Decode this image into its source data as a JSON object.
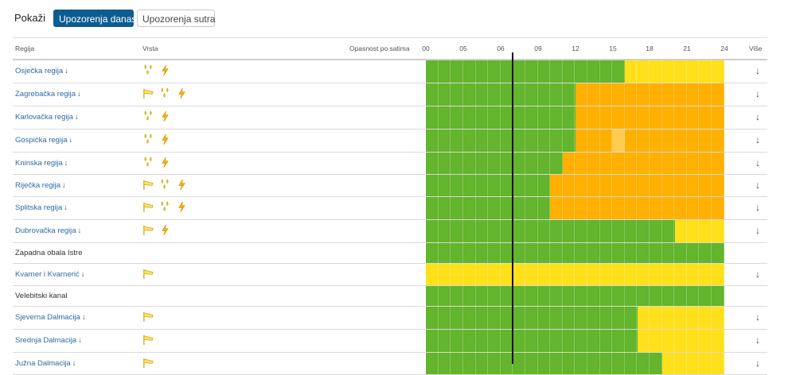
{
  "topbar": {
    "show_label": "Pokaži",
    "today_label": "Upozorenja danas",
    "tomorrow_label": "Upozorenja sutra"
  },
  "header": {
    "region": "Regija",
    "type": "Vrsta",
    "hourly": "Opasnost po satima",
    "hours": [
      "00",
      "05",
      "06",
      "09",
      "12",
      "15",
      "18",
      "21",
      "24"
    ],
    "more": "Više"
  },
  "colors": {
    "green": "#62b52c",
    "yellow": "#ffe01a",
    "orange": "#ffb000",
    "light_orange": "#ffcb50",
    "link": "#2e6aa8",
    "primary_button": "#0d5c91"
  },
  "rows": [
    {
      "region": "Osječka regija",
      "link": true,
      "icons": [
        "rain-icon",
        "lightning-icon"
      ],
      "more": true,
      "segments": [
        {
          "color": "green",
          "hours": 16
        },
        {
          "color": "yellow",
          "hours": 8
        }
      ]
    },
    {
      "region": "Zagrebačka regija",
      "link": true,
      "icons": [
        "wind-icon",
        "rain-icon",
        "lightning-icon"
      ],
      "more": true,
      "segments": [
        {
          "color": "green",
          "hours": 12
        },
        {
          "color": "orange",
          "hours": 12
        }
      ]
    },
    {
      "region": "Karlovačka regija",
      "link": true,
      "icons": [
        "rain-icon",
        "lightning-icon"
      ],
      "more": true,
      "segments": [
        {
          "color": "green",
          "hours": 12
        },
        {
          "color": "orange",
          "hours": 12
        }
      ]
    },
    {
      "region": "Gospićka regija",
      "link": true,
      "icons": [
        "rain-icon",
        "lightning-icon"
      ],
      "more": true,
      "segments": [
        {
          "color": "green",
          "hours": 12
        },
        {
          "color": "orange",
          "hours": 3
        },
        {
          "color": "light_orange",
          "hours": 1
        },
        {
          "color": "orange",
          "hours": 8
        }
      ]
    },
    {
      "region": "Kninska regija",
      "link": true,
      "icons": [
        "rain-icon",
        "lightning-icon"
      ],
      "more": true,
      "segments": [
        {
          "color": "green",
          "hours": 11
        },
        {
          "color": "orange",
          "hours": 13
        }
      ]
    },
    {
      "region": "Riječka regija",
      "link": true,
      "icons": [
        "wind-icon",
        "rain-icon",
        "lightning-icon"
      ],
      "more": true,
      "segments": [
        {
          "color": "green",
          "hours": 10
        },
        {
          "color": "orange",
          "hours": 14
        }
      ]
    },
    {
      "region": "Splitska regija",
      "link": true,
      "icons": [
        "wind-icon",
        "rain-icon",
        "lightning-icon"
      ],
      "more": true,
      "segments": [
        {
          "color": "green",
          "hours": 10
        },
        {
          "color": "orange",
          "hours": 14
        }
      ]
    },
    {
      "region": "Dubrovačka regija",
      "link": true,
      "icons": [
        "wind-icon",
        "lightning-icon"
      ],
      "more": true,
      "segments": [
        {
          "color": "green",
          "hours": 20
        },
        {
          "color": "yellow",
          "hours": 4
        }
      ]
    },
    {
      "region": "Zapadna obala Istre",
      "link": false,
      "icons": [],
      "more": false,
      "segments": [
        {
          "color": "green",
          "hours": 24
        }
      ]
    },
    {
      "region": "Kvarner i Kvarnerić",
      "link": true,
      "icons": [
        "wind-icon"
      ],
      "more": true,
      "segments": [
        {
          "color": "yellow",
          "hours": 24
        }
      ]
    },
    {
      "region": "Velebitski kanal",
      "link": false,
      "icons": [],
      "more": false,
      "segments": [
        {
          "color": "green",
          "hours": 24
        }
      ]
    },
    {
      "region": "Sjeverna Dalmacija",
      "link": true,
      "icons": [
        "wind-icon"
      ],
      "more": true,
      "segments": [
        {
          "color": "green",
          "hours": 17
        },
        {
          "color": "yellow",
          "hours": 7
        }
      ]
    },
    {
      "region": "Srednja Dalmacija",
      "link": true,
      "icons": [
        "wind-icon"
      ],
      "more": true,
      "segments": [
        {
          "color": "green",
          "hours": 17
        },
        {
          "color": "yellow",
          "hours": 7
        }
      ]
    },
    {
      "region": "Južna Dalmacija",
      "link": true,
      "icons": [
        "wind-icon"
      ],
      "more": true,
      "segments": [
        {
          "color": "green",
          "hours": 19
        },
        {
          "color": "yellow",
          "hours": 5
        }
      ]
    }
  ]
}
